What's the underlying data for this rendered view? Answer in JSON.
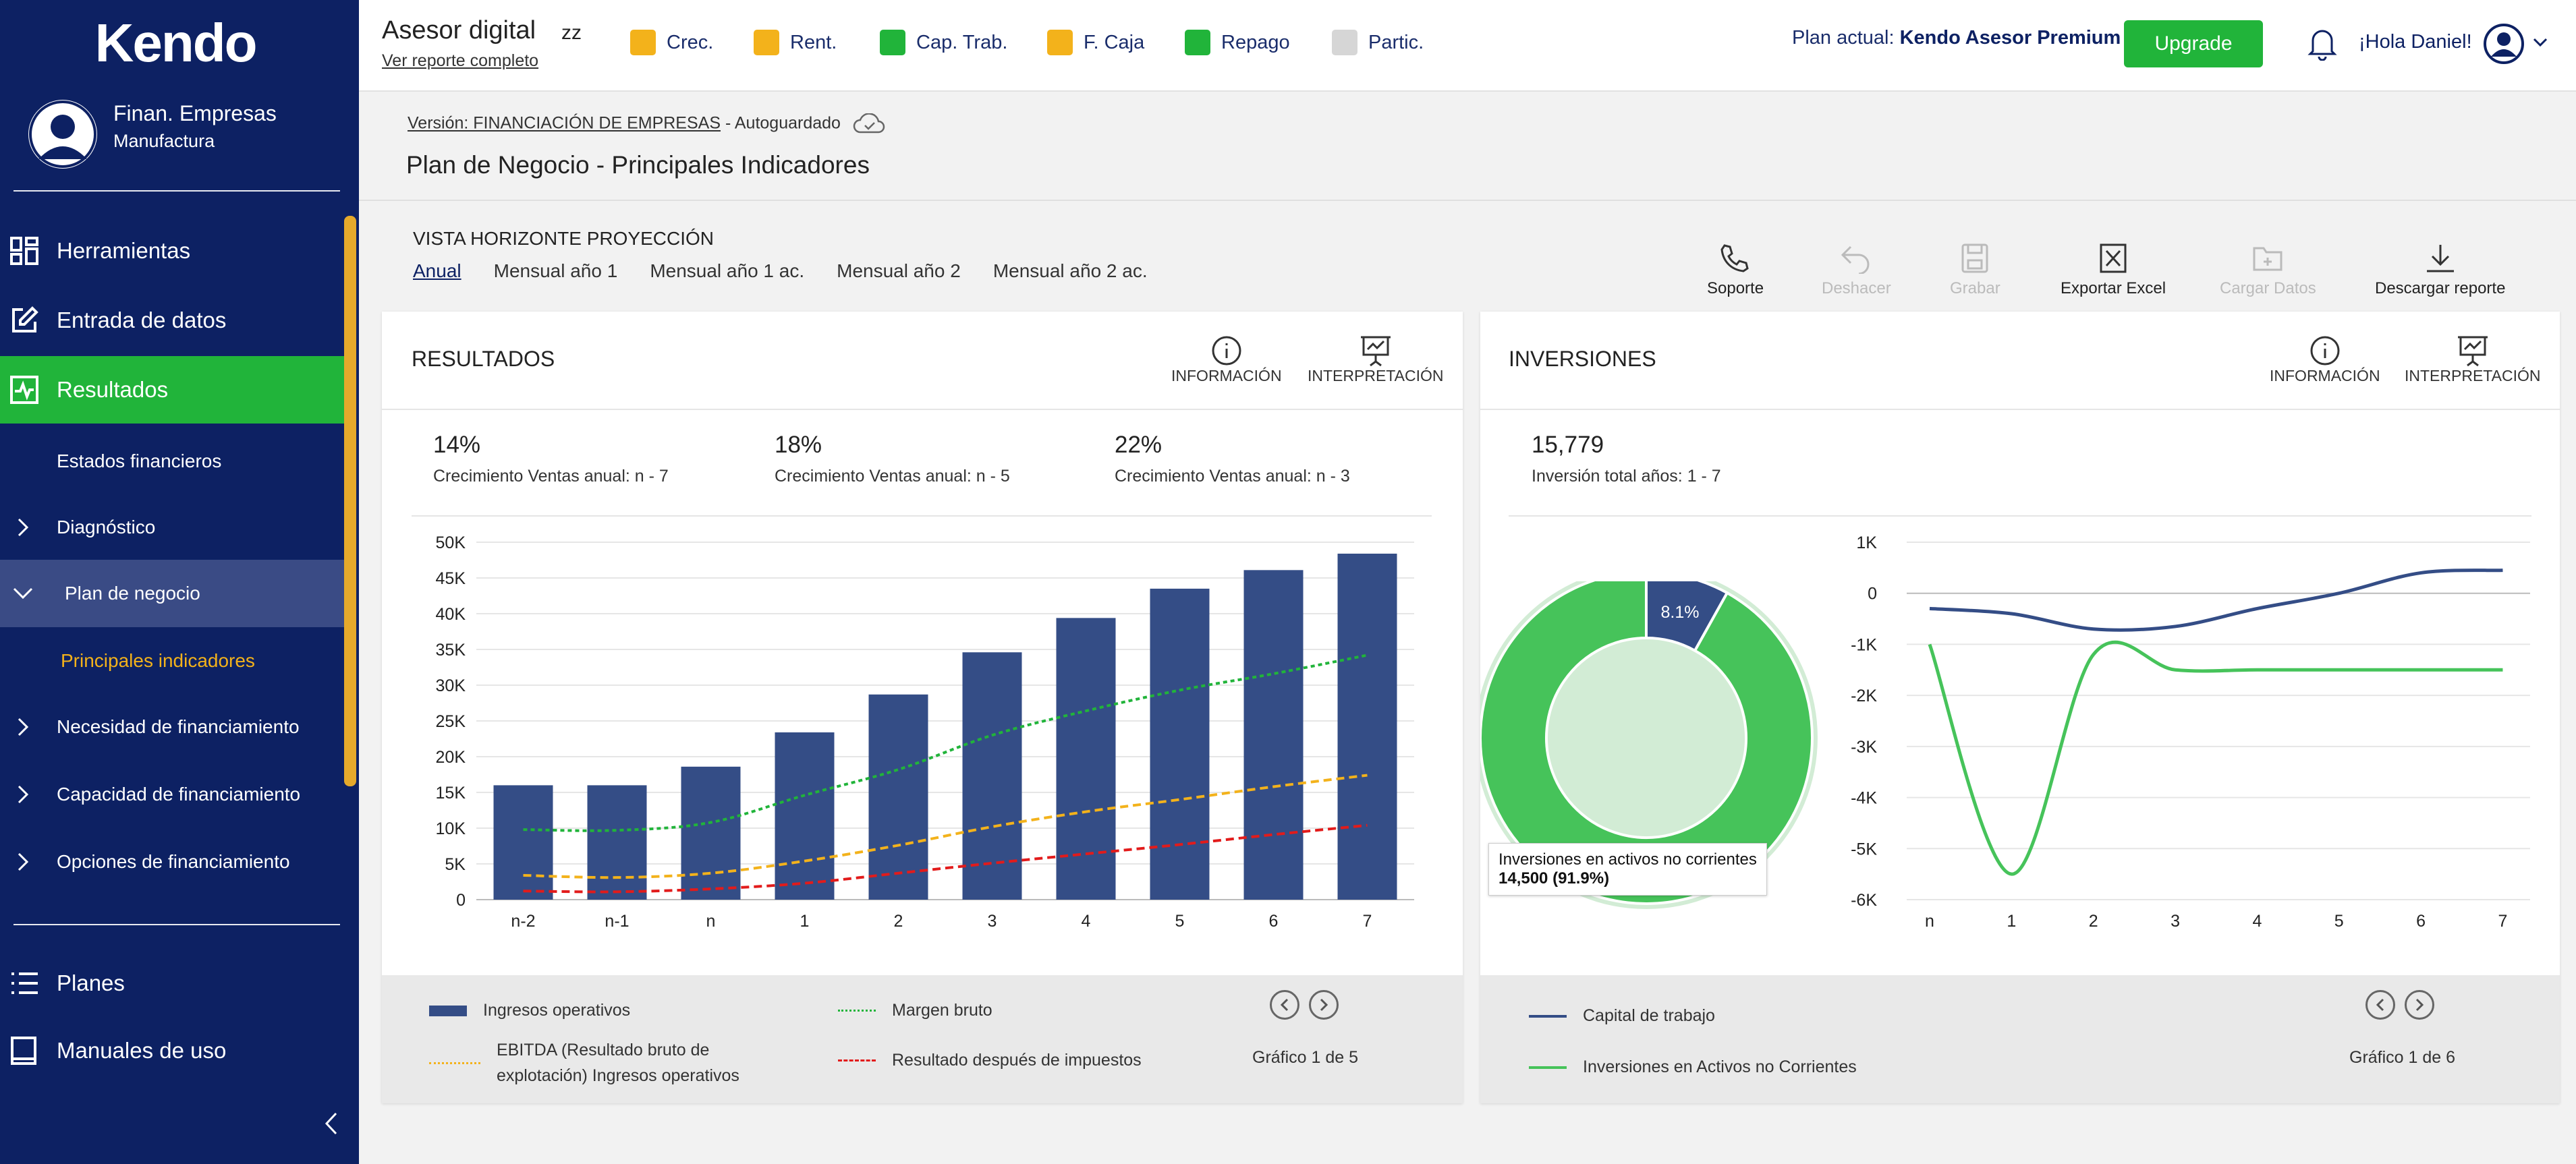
{
  "app": {
    "logo": "Kendo",
    "org_name": "Finan. Empresas",
    "org_sub": "Manufactura"
  },
  "colors": {
    "brand": "#0d2163",
    "accent": "#21b43a",
    "gold": "#f3b21b",
    "bar": "#344d86"
  },
  "sidebar": {
    "main": [
      {
        "label": "Herramientas",
        "icon": "grid-icon"
      },
      {
        "label": "Entrada de datos",
        "icon": "edit-icon"
      },
      {
        "label": "Resultados",
        "icon": "chart-icon"
      }
    ],
    "sub": [
      {
        "label": "Estados financieros"
      },
      {
        "label": "Diagnóstico"
      },
      {
        "label": "Plan de negocio"
      },
      {
        "label": "Principales indicadores"
      },
      {
        "label": "Necesidad de financiamiento"
      },
      {
        "label": "Capacidad de financiamiento"
      },
      {
        "label": "Opciones de financiamiento"
      }
    ],
    "bottom": [
      {
        "label": "Planes",
        "icon": "list-icon"
      },
      {
        "label": "Manuales de uso",
        "icon": "book-icon"
      }
    ]
  },
  "header": {
    "title": "Asesor digital",
    "zz": "zz",
    "report_link": "Ver reporte completo",
    "legend": [
      {
        "label": "Crec.",
        "color": "#f3b21b"
      },
      {
        "label": "Rent.",
        "color": "#f3b21b"
      },
      {
        "label": "Cap. Trab.",
        "color": "#21b43a"
      },
      {
        "label": "F. Caja",
        "color": "#f3b21b"
      },
      {
        "label": "Repago",
        "color": "#21b43a"
      },
      {
        "label": "Partic.",
        "color": "#d6d6d6"
      }
    ],
    "plan_prefix": "Plan actual: ",
    "plan_name": "Kendo Asesor Premium",
    "upgrade": "Upgrade",
    "greeting": "¡Hola Daniel!"
  },
  "page": {
    "version_label": "Versión: FINANCIACIÓN DE EMPRESAS",
    "autosave": "- Autoguardado",
    "title": "Plan de Negocio - Principales Indicadores",
    "vista": "VISTA HORIZONTE PROYECCIÓN",
    "tabs": [
      "Anual",
      "Mensual año 1",
      "Mensual año 1 ac.",
      "Mensual año 2",
      "Mensual año 2 ac."
    ],
    "tools": [
      {
        "label": "Soporte"
      },
      {
        "label": "Deshacer"
      },
      {
        "label": "Grabar"
      },
      {
        "label": "Exportar Excel"
      },
      {
        "label": "Cargar Datos"
      },
      {
        "label": "Descargar reporte"
      }
    ]
  },
  "resultados": {
    "title": "RESULTADOS",
    "info": "INFORMACIÓN",
    "interp": "INTERPRETACIÓN",
    "kpis": [
      {
        "value": "14%",
        "label": "Crecimiento Ventas anual: n - 7"
      },
      {
        "value": "18%",
        "label": "Crecimiento Ventas anual: n - 5"
      },
      {
        "value": "22%",
        "label": "Crecimiento Ventas anual: n - 3"
      }
    ],
    "legend": [
      "Ingresos operativos",
      "Margen bruto",
      "EBITDA (Resultado bruto de",
      "explotación) Ingresos operativos",
      "Resultado después de impuestos"
    ],
    "pager": "Gráfico 1 de 5"
  },
  "inversiones": {
    "title": "INVERSIONES",
    "info": "INFORMACIÓN",
    "interp": "INTERPRETACIÓN",
    "kpi": {
      "value": "15,779",
      "label": "Inversión total años: 1 - 7"
    },
    "donut_label": "8.1%",
    "tooltip_title": "Inversiones en activos no corrientes",
    "tooltip_value": "14,500 (91.9%)",
    "legend": [
      "Capital de trabajo",
      "Inversiones en Activos no Corrientes"
    ],
    "pager": "Gráfico 1 de 6"
  },
  "chart_data": [
    {
      "type": "bar",
      "title": "RESULTADOS",
      "categories": [
        "n-2",
        "n-1",
        "n",
        "1",
        "2",
        "3",
        "4",
        "5",
        "6",
        "7"
      ],
      "series": [
        {
          "name": "Ingresos operativos",
          "type": "bar",
          "values": [
            16000,
            16000,
            18600,
            23400,
            28700,
            34600,
            39400,
            43500,
            46100,
            48400
          ]
        },
        {
          "name": "Margen bruto",
          "type": "line",
          "values": [
            9800,
            9700,
            10800,
            14600,
            18200,
            23000,
            26400,
            29300,
            31600,
            34200
          ]
        },
        {
          "name": "EBITDA (Resultado bruto de explotación) Ingresos operativos",
          "type": "line",
          "values": [
            3400,
            3100,
            3700,
            5400,
            7600,
            10200,
            12300,
            14000,
            15800,
            17400
          ]
        },
        {
          "name": "Resultado después de impuestos",
          "type": "line",
          "values": [
            1200,
            1100,
            1500,
            2300,
            3700,
            5100,
            6400,
            7700,
            9100,
            10400
          ]
        }
      ],
      "yticks": [
        "0",
        "5K",
        "10K",
        "15K",
        "20K",
        "25K",
        "30K",
        "35K",
        "40K",
        "45K",
        "50K"
      ],
      "ylim": [
        0,
        50000
      ]
    },
    {
      "type": "pie",
      "title": "INVERSIONES",
      "slices": [
        {
          "name": "Capital de trabajo",
          "value": 8.1
        },
        {
          "name": "Inversiones en activos no corrientes",
          "value": 91.9
        }
      ]
    },
    {
      "type": "line",
      "title": "INVERSIONES",
      "categories": [
        "n",
        "1",
        "2",
        "3",
        "4",
        "5",
        "6",
        "7"
      ],
      "series": [
        {
          "name": "Capital de trabajo",
          "values": [
            -300,
            -400,
            -700,
            -650,
            -300,
            0,
            400,
            450
          ]
        },
        {
          "name": "Inversiones en Activos no Corrientes",
          "values": [
            -1000,
            -5500,
            -1200,
            -1500,
            -1500,
            -1500,
            -1500,
            -1500
          ]
        }
      ],
      "yticks": [
        "1K",
        "0",
        "-1K",
        "-2K",
        "-3K",
        "-4K",
        "-5K",
        "-6K"
      ],
      "ylim": [
        -6000,
        1000
      ]
    }
  ]
}
